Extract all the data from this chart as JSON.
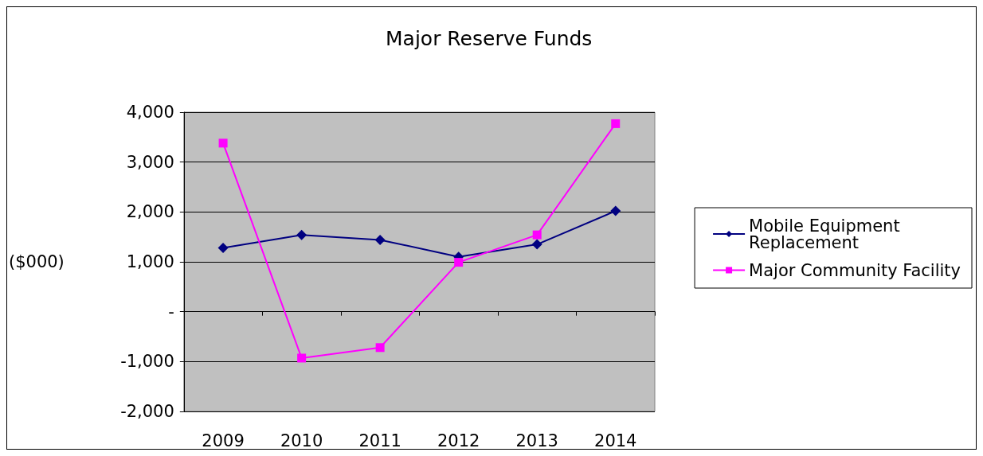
{
  "chart_data": {
    "type": "line",
    "title": "Major Reserve Funds",
    "ylabel": "($000)",
    "categories": [
      "2009",
      "2010",
      "2011",
      "2012",
      "2013",
      "2014"
    ],
    "series": [
      {
        "name": "Mobile Equipment Replacement",
        "color": "#000080",
        "marker": "diamond",
        "values": [
          1280,
          1540,
          1440,
          1100,
          1350,
          2020
        ]
      },
      {
        "name": "Major Community Facility",
        "color": "#ff00ff",
        "marker": "square",
        "values": [
          3380,
          -930,
          -720,
          990,
          1540,
          3770
        ]
      }
    ],
    "ylim": [
      -2000,
      4000
    ],
    "yticks": [
      {
        "value": -2000,
        "label": "-2,000"
      },
      {
        "value": -1000,
        "label": "-1,000"
      },
      {
        "value": 0,
        "label": "-"
      },
      {
        "value": 1000,
        "label": "1,000"
      },
      {
        "value": 2000,
        "label": "2,000"
      },
      {
        "value": 3000,
        "label": "3,000"
      },
      {
        "value": 4000,
        "label": "4,000"
      }
    ],
    "grid": "y",
    "legend": "right"
  }
}
